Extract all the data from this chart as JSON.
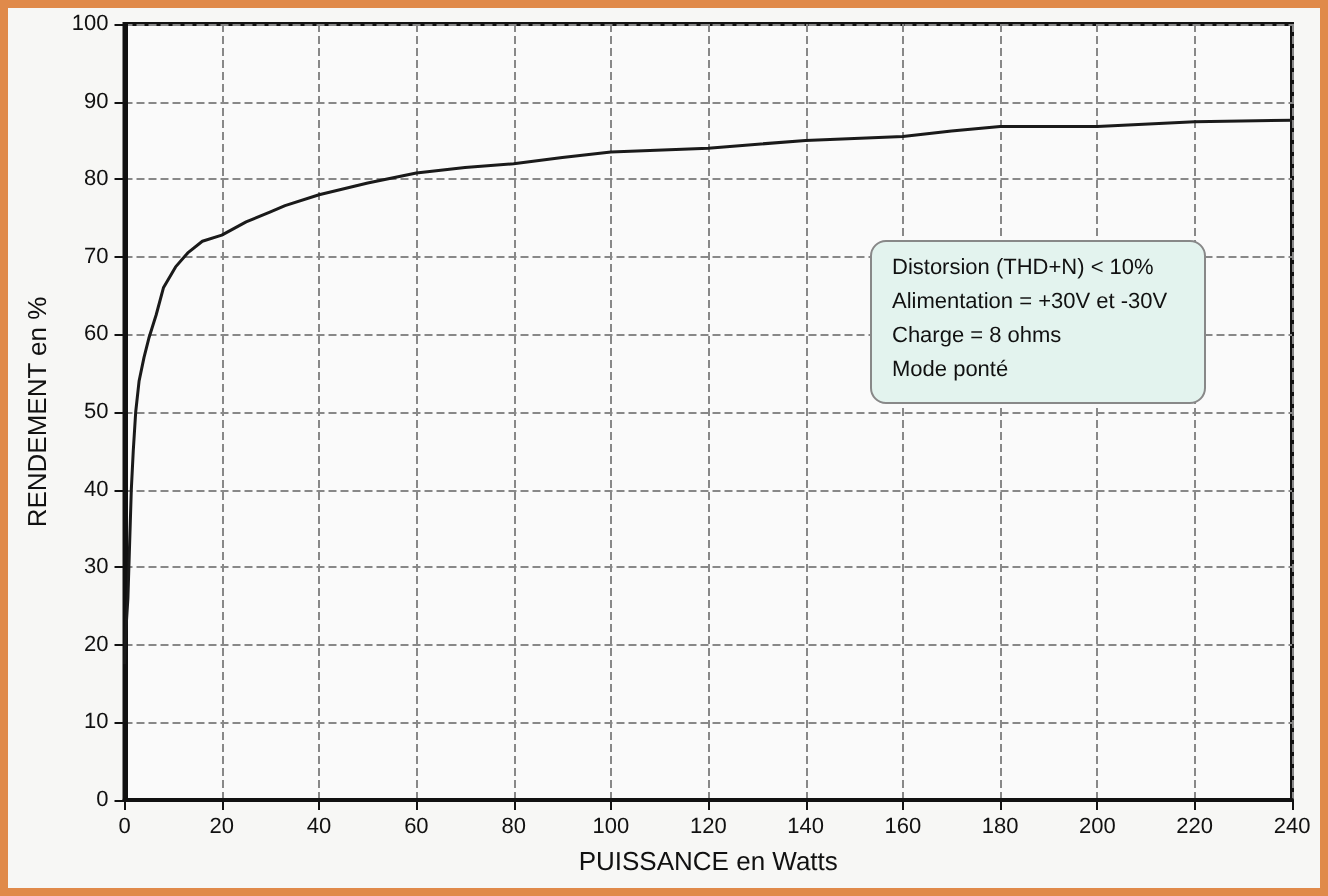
{
  "chart_data": {
    "type": "line",
    "xlabel": "PUISSANCE en Watts",
    "ylabel": "RENDEMENT en %",
    "annotations": [
      "Distorsion (THD+N) < 10%",
      "Alimentation  = +30V et -30V",
      "Charge = 8 ohms",
      "Mode ponté"
    ],
    "series": [
      {
        "color": "#1a1a1a",
        "x": [
          0,
          0.3,
          0.7,
          1.0,
          1.4,
          1.8,
          2.3,
          3,
          4,
          5,
          6.5,
          8,
          10.5,
          13,
          16,
          20,
          25,
          30,
          33,
          40,
          50,
          60,
          70,
          80,
          90,
          100,
          120,
          140,
          160,
          170,
          180,
          200,
          220,
          240
        ],
        "values": [
          17.5,
          22,
          26,
          32,
          40,
          45,
          50,
          54,
          57,
          59.5,
          62.5,
          66,
          68.7,
          70.5,
          72,
          72.8,
          74.5,
          75.8,
          76.6,
          78,
          79.5,
          80.8,
          81.5,
          82,
          82.8,
          83.5,
          84,
          85,
          85.5,
          86.2,
          86.8,
          86.8,
          87.4,
          87.6
        ]
      }
    ],
    "xlim": [
      0,
      240
    ],
    "xticks": [
      0,
      20,
      40,
      60,
      80,
      100,
      120,
      140,
      160,
      180,
      200,
      220,
      240
    ],
    "ylim": [
      0,
      100
    ],
    "yticks": [
      0,
      10,
      20,
      30,
      40,
      50,
      60,
      70,
      80,
      90,
      100
    ],
    "grid": true,
    "marker": "none",
    "line_style": "solid"
  }
}
